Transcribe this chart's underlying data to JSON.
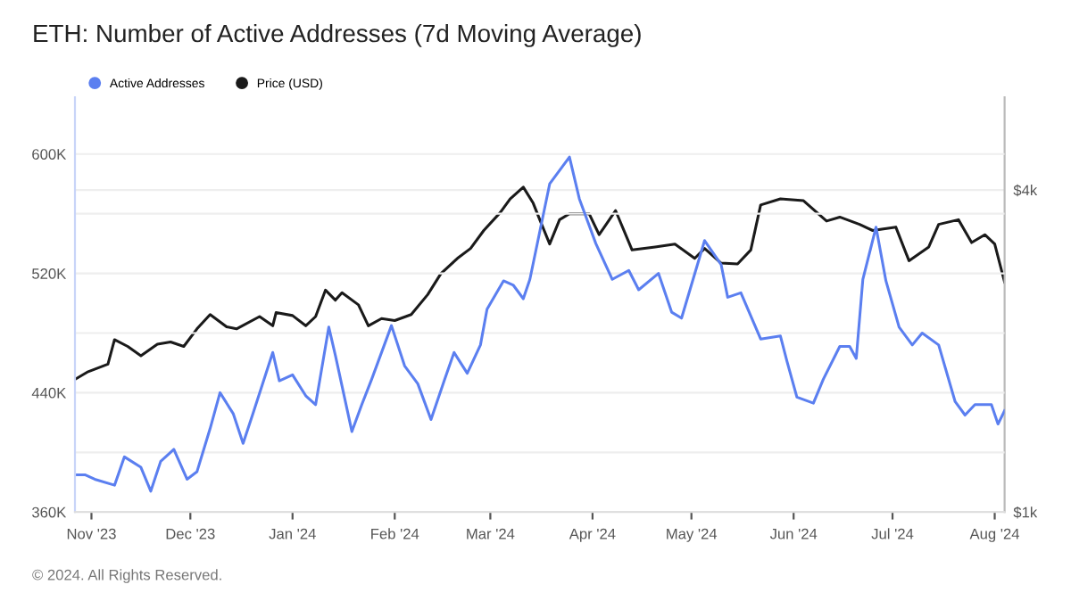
{
  "chart_data": {
    "type": "line",
    "title": "ETH: Number of Active Addresses (7d Moving Average)",
    "annotations": [
      "© 2024. All Rights Reserved."
    ],
    "legend": "top left",
    "grid": "y",
    "log": "y2",
    "marker": "none",
    "line_style": "solid",
    "xlim": [
      "2023-10-27",
      "2024-08-04"
    ],
    "xticks": [
      {
        "value": "2023-11-01",
        "label": "Nov '23"
      },
      {
        "value": "2023-12-01",
        "label": "Dec '23"
      },
      {
        "value": "2024-01-01",
        "label": "Jan '24"
      },
      {
        "value": "2024-02-01",
        "label": "Feb '24"
      },
      {
        "value": "2024-03-01",
        "label": "Mar '24"
      },
      {
        "value": "2024-04-01",
        "label": "Apr '24"
      },
      {
        "value": "2024-05-01",
        "label": "May '24"
      },
      {
        "value": "2024-06-01",
        "label": "Jun '24"
      },
      {
        "value": "2024-07-01",
        "label": "Jul '24"
      },
      {
        "value": "2024-08-01",
        "label": "Aug '24"
      }
    ],
    "ylim": [
      360000,
      638000
    ],
    "yticks": [
      {
        "value": 360000,
        "label": "360K"
      },
      {
        "value": 400000,
        "label": null
      },
      {
        "value": 440000,
        "label": "440K"
      },
      {
        "value": 480000,
        "label": null
      },
      {
        "value": 520000,
        "label": "520K"
      },
      {
        "value": 560000,
        "label": null
      },
      {
        "value": 600000,
        "label": "600K"
      }
    ],
    "y2lim": [
      1000,
      5960
    ],
    "y2ticks": [
      {
        "value": 1000,
        "label": "$1k"
      },
      {
        "value": 4000,
        "label": "$4k"
      }
    ],
    "series": [
      {
        "name": "Active Addresses",
        "color": "#5b7ff0",
        "x": [
          "2023-10-27",
          "2023-10-30",
          "2023-11-02",
          "2023-11-08",
          "2023-11-11",
          "2023-11-16",
          "2023-11-19",
          "2023-11-22",
          "2023-11-26",
          "2023-11-30",
          "2023-12-03",
          "2023-12-07",
          "2023-12-10",
          "2023-12-14",
          "2023-12-17",
          "2023-12-20",
          "2023-12-26",
          "2023-12-28",
          "2024-01-01",
          "2024-01-05",
          "2024-01-08",
          "2024-01-12",
          "2024-01-14",
          "2024-01-19",
          "2024-01-22",
          "2024-01-25",
          "2024-01-31",
          "2024-02-04",
          "2024-02-08",
          "2024-02-12",
          "2024-02-16",
          "2024-02-19",
          "2024-02-23",
          "2024-02-27",
          "2024-02-29",
          "2024-03-05",
          "2024-03-08",
          "2024-03-11",
          "2024-03-13",
          "2024-03-19",
          "2024-03-25",
          "2024-03-28",
          "2024-04-02",
          "2024-04-07",
          "2024-04-12",
          "2024-04-15",
          "2024-04-21",
          "2024-04-25",
          "2024-04-28",
          "2024-05-05",
          "2024-05-10",
          "2024-05-12",
          "2024-05-16",
          "2024-05-22",
          "2024-05-28",
          "2024-05-30",
          "2024-06-02",
          "2024-06-07",
          "2024-06-10",
          "2024-06-15",
          "2024-06-18",
          "2024-06-20",
          "2024-06-22",
          "2024-06-26",
          "2024-06-29",
          "2024-07-03",
          "2024-07-07",
          "2024-07-10",
          "2024-07-15",
          "2024-07-20",
          "2024-07-23",
          "2024-07-26",
          "2024-07-31",
          "2024-08-02",
          "2024-08-04"
        ],
        "values": [
          385000,
          385000,
          382000,
          378000,
          397000,
          390000,
          374000,
          394000,
          402000,
          382000,
          387000,
          416000,
          440000,
          426000,
          406000,
          426000,
          467000,
          448000,
          452000,
          438000,
          432000,
          484000,
          465000,
          414000,
          432000,
          449000,
          485000,
          458000,
          446000,
          422000,
          448000,
          467000,
          453000,
          472000,
          496000,
          515000,
          512000,
          503000,
          516000,
          580000,
          598000,
          570000,
          540000,
          516000,
          522000,
          509000,
          520000,
          494000,
          490000,
          542000,
          526000,
          504000,
          507000,
          476000,
          478000,
          461000,
          437000,
          433000,
          449000,
          471000,
          471000,
          463000,
          516000,
          551000,
          515000,
          484000,
          472000,
          480000,
          472000,
          434000,
          425000,
          432000,
          432000,
          419000,
          428000
        ]
      },
      {
        "name": "Price (USD)",
        "color": "#1a1a1a",
        "axis": "y2",
        "x": [
          "2023-10-27",
          "2023-10-31",
          "2023-11-06",
          "2023-11-08",
          "2023-11-12",
          "2023-11-16",
          "2023-11-21",
          "2023-11-25",
          "2023-11-29",
          "2023-12-03",
          "2023-12-07",
          "2023-12-12",
          "2023-12-15",
          "2023-12-22",
          "2023-12-26",
          "2023-12-27",
          "2024-01-01",
          "2024-01-05",
          "2024-01-08",
          "2024-01-11",
          "2024-01-14",
          "2024-01-16",
          "2024-01-21",
          "2024-01-24",
          "2024-01-28",
          "2024-02-01",
          "2024-02-06",
          "2024-02-11",
          "2024-02-15",
          "2024-02-20",
          "2024-02-24",
          "2024-02-28",
          "2024-03-04",
          "2024-03-07",
          "2024-03-11",
          "2024-03-14",
          "2024-03-16",
          "2024-03-19",
          "2024-03-22",
          "2024-03-25",
          "2024-03-31",
          "2024-04-03",
          "2024-04-08",
          "2024-04-13",
          "2024-04-20",
          "2024-04-26",
          "2024-05-02",
          "2024-05-05",
          "2024-05-10",
          "2024-05-15",
          "2024-05-19",
          "2024-05-22",
          "2024-05-28",
          "2024-06-04",
          "2024-06-11",
          "2024-06-15",
          "2024-06-21",
          "2024-06-25",
          "2024-07-02",
          "2024-07-06",
          "2024-07-12",
          "2024-07-15",
          "2024-07-21",
          "2024-07-25",
          "2024-07-29",
          "2024-08-01",
          "2024-08-04"
        ],
        "values": [
          1770,
          1830,
          1890,
          2100,
          2040,
          1960,
          2060,
          2080,
          2040,
          2200,
          2340,
          2220,
          2200,
          2320,
          2230,
          2360,
          2330,
          2230,
          2320,
          2600,
          2490,
          2570,
          2440,
          2230,
          2300,
          2280,
          2340,
          2550,
          2790,
          2980,
          3110,
          3360,
          3630,
          3850,
          4050,
          3780,
          3520,
          3170,
          3520,
          3610,
          3610,
          3300,
          3660,
          3090,
          3130,
          3170,
          2980,
          3110,
          2920,
          2910,
          3090,
          3750,
          3850,
          3820,
          3500,
          3560,
          3450,
          3360,
          3410,
          2950,
          3130,
          3450,
          3520,
          3190,
          3300,
          3170,
          2690
        ]
      }
    ]
  }
}
